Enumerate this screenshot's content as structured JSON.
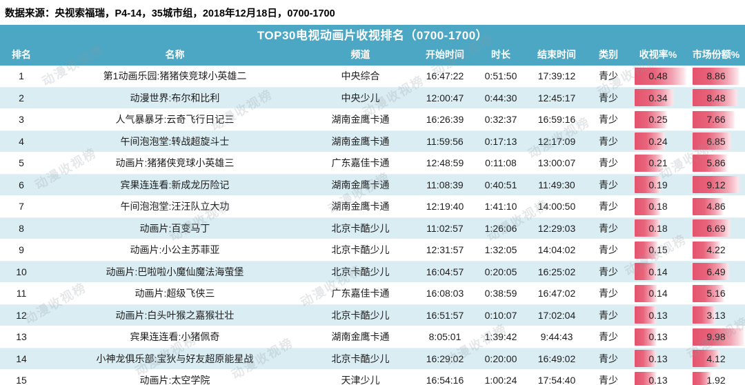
{
  "source_line": "数据来源：央视索福瑞，P4-14，35城市组，2018年12月18日，0700-1700",
  "title": "TOP30电视动画片收视排名（0700-1700）",
  "watermark": {
    "text": "动漫收视榜"
  },
  "colors": {
    "header_teal": "#4BA7C4",
    "row_stripe": "#DAEDF3",
    "bar_red": "#E4536E",
    "text": "#1C1C1C"
  },
  "chart_data": {
    "type": "table",
    "title": "TOP30电视动画片收视排名（0700-1700）",
    "columns": [
      "排名",
      "名称",
      "频道",
      "开始时间",
      "时长",
      "结束时间",
      "类别",
      "收视率%",
      "市场份额%"
    ],
    "bar_columns": {
      "收视率%": {
        "max": 0.48
      },
      "市场份额%": {
        "max": 9.98
      }
    },
    "rows": [
      {
        "rank": 1,
        "name": "第1动画乐园:猪猪侠竞球小英雄二",
        "channel": "中央综合",
        "start": "16:47:22",
        "duration": "0:51:50",
        "end": "17:39:12",
        "category": "青少",
        "rating": 0.48,
        "share": 8.86
      },
      {
        "rank": 2,
        "name": "动漫世界:布尔和比利",
        "channel": "中央少儿",
        "start": "12:00:47",
        "duration": "0:44:30",
        "end": "12:45:17",
        "category": "青少",
        "rating": 0.34,
        "share": 8.48
      },
      {
        "rank": 3,
        "name": "人气暴暴牙:云奇飞行日记三",
        "channel": "湖南金鹰卡通",
        "start": "16:26:39",
        "duration": "0:32:37",
        "end": "16:59:16",
        "category": "青少",
        "rating": 0.25,
        "share": 7.66
      },
      {
        "rank": 4,
        "name": "午间泡泡堂:转战超旋斗士",
        "channel": "湖南金鹰卡通",
        "start": "11:59:56",
        "duration": "0:17:13",
        "end": "12:17:09",
        "category": "青少",
        "rating": 0.24,
        "share": 6.85
      },
      {
        "rank": 5,
        "name": "动画片:猪猪侠竞球小英雄三",
        "channel": "广东嘉佳卡通",
        "start": "12:48:59",
        "duration": "0:11:08",
        "end": "13:00:07",
        "category": "青少",
        "rating": 0.21,
        "share": 5.86
      },
      {
        "rank": 6,
        "name": "宾果连连看:新成龙历险记",
        "channel": "湖南金鹰卡通",
        "start": "11:08:39",
        "duration": "0:40:51",
        "end": "11:49:30",
        "category": "青少",
        "rating": 0.19,
        "share": 9.12
      },
      {
        "rank": 7,
        "name": "午间泡泡堂:汪汪队立大功",
        "channel": "湖南金鹰卡通",
        "start": "12:19:40",
        "duration": "1:41:10",
        "end": "14:00:50",
        "category": "青少",
        "rating": 0.18,
        "share": 4.86
      },
      {
        "rank": 8,
        "name": "动画片:百变马丁",
        "channel": "北京卡酷少儿",
        "start": "11:02:57",
        "duration": "1:26:06",
        "end": "12:29:03",
        "category": "青少",
        "rating": 0.18,
        "share": 6.69
      },
      {
        "rank": 9,
        "name": "动画片:小公主苏菲亚",
        "channel": "北京卡酷少儿",
        "start": "12:31:57",
        "duration": "1:32:05",
        "end": "14:04:02",
        "category": "青少",
        "rating": 0.15,
        "share": 4.22
      },
      {
        "rank": 10,
        "name": "动画片:巴啦啦小魔仙魔法海萤堡",
        "channel": "北京卡酷少儿",
        "start": "16:04:57",
        "duration": "0:20:05",
        "end": "16:25:02",
        "category": "青少",
        "rating": 0.14,
        "share": 6.49
      },
      {
        "rank": 11,
        "name": "动画片:超级飞侠三",
        "channel": "广东嘉佳卡通",
        "start": "16:08:03",
        "duration": "0:38:59",
        "end": "16:47:02",
        "category": "青少",
        "rating": 0.14,
        "share": 5.16
      },
      {
        "rank": 12,
        "name": "动画片:白头叶猴之嘉猴壮壮",
        "channel": "北京卡酷少儿",
        "start": "16:51:57",
        "duration": "0:10:07",
        "end": "17:02:04",
        "category": "青少",
        "rating": 0.13,
        "share": 3.13
      },
      {
        "rank": 13,
        "name": "宾果连连看:小猪佩奇",
        "channel": "湖南金鹰卡通",
        "start": "8:05:01",
        "duration": "1:39:42",
        "end": "9:44:43",
        "category": "青少",
        "rating": 0.13,
        "share": 9.98
      },
      {
        "rank": 14,
        "name": "小神龙俱乐部:宝狄与好友超原能星战",
        "channel": "北京卡酷少儿",
        "start": "16:29:02",
        "duration": "0:20:00",
        "end": "16:49:02",
        "category": "青少",
        "rating": 0.13,
        "share": 4.12
      },
      {
        "rank": 15,
        "name": "动画片:太空学院",
        "channel": "天津少儿",
        "start": "16:54:16",
        "duration": "1:00:24",
        "end": "17:54:40",
        "category": "青少",
        "rating": 0.13,
        "share": 1.92
      }
    ]
  }
}
